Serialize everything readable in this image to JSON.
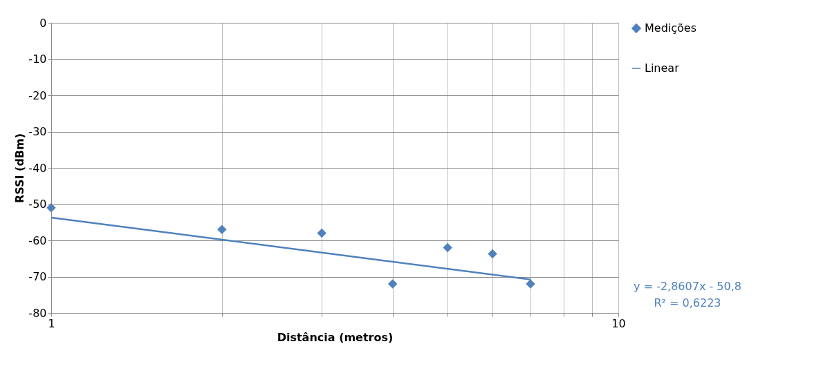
{
  "chart_data": {
    "type": "scatter",
    "xlabel": "Distância (metros)",
    "ylabel": "RSSI (dBm)",
    "series": [
      {
        "name": "Medições",
        "color": "#4f81bd",
        "marker": "diamond",
        "x": [
          1,
          2,
          3,
          4,
          5,
          6,
          7
        ],
        "values": [
          -51,
          -57,
          -58,
          -72,
          -62,
          -63.7,
          -72
        ]
      },
      {
        "name": "Linear",
        "type": "line",
        "color": "#4f81bd",
        "x": [
          1,
          7
        ],
        "values": [
          -53.7,
          -70.8
        ]
      }
    ],
    "log": "x",
    "xlim": [
      1,
      10
    ],
    "xticks": [
      1,
      {
        "value": 2,
        "label": null
      },
      {
        "value": 3,
        "label": null
      },
      {
        "value": 4,
        "label": null
      },
      {
        "value": 5,
        "label": null
      },
      {
        "value": 6,
        "label": null
      },
      {
        "value": 7,
        "label": null
      },
      {
        "value": 8,
        "label": null
      },
      {
        "value": 9,
        "label": null
      },
      10
    ],
    "ylim": [
      -80,
      0
    ],
    "yticks": [
      -80,
      -70,
      -60,
      -50,
      -40,
      -30,
      -20,
      -10,
      0
    ],
    "grid": true,
    "legend": "right",
    "annotations": [
      "y = -2,8607x - 50,8",
      "R² = 0,6223"
    ]
  }
}
